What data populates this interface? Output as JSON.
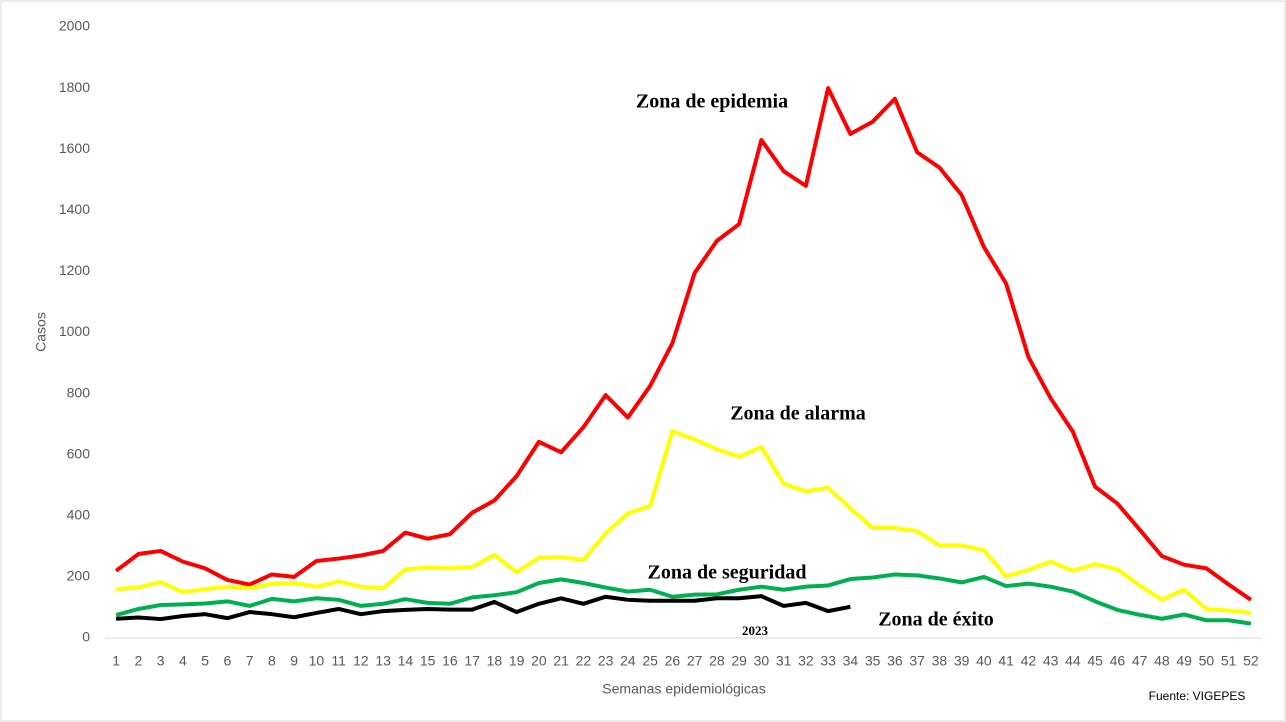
{
  "chart_data": {
    "type": "line",
    "y_label": "Casos",
    "x_label": "Semanas epidemiológicas",
    "source": "Fuente: VIGEPES",
    "annotations": [
      "Zona de epidemia",
      "Zona de alarma",
      "Zona de seguridad",
      "Zona de éxito",
      "2023"
    ],
    "x": [
      1,
      2,
      3,
      4,
      5,
      6,
      7,
      8,
      9,
      10,
      11,
      12,
      13,
      14,
      15,
      16,
      17,
      18,
      19,
      20,
      21,
      22,
      23,
      24,
      25,
      26,
      27,
      28,
      29,
      30,
      31,
      32,
      33,
      34,
      35,
      36,
      37,
      38,
      39,
      40,
      41,
      42,
      43,
      44,
      45,
      46,
      47,
      48,
      49,
      50,
      51,
      52
    ],
    "xlim": [
      0.5,
      52.5
    ],
    "ylim": [
      0,
      2000
    ],
    "yticks": [
      0,
      200,
      400,
      600,
      800,
      1000,
      1200,
      1400,
      1600,
      1800,
      2000
    ],
    "grid": false,
    "series": [
      {
        "color": "#ff0000",
        "values": [
          220,
          275,
          285,
          250,
          228,
          190,
          175,
          208,
          200,
          252,
          260,
          270,
          285,
          345,
          325,
          340,
          410,
          450,
          530,
          642,
          608,
          690,
          795,
          722,
          825,
          965,
          1195,
          1300,
          1355,
          1630,
          1528,
          1480,
          1800,
          1650,
          1690,
          1765,
          1590,
          1540,
          1450,
          1280,
          1160,
          920,
          785,
          675,
          495,
          440,
          355,
          268,
          240,
          228,
          175,
          125
        ]
      },
      {
        "color": "#ffff00",
        "values": [
          160,
          165,
          183,
          150,
          160,
          168,
          163,
          178,
          180,
          168,
          185,
          168,
          162,
          225,
          230,
          228,
          232,
          272,
          215,
          263,
          265,
          255,
          342,
          408,
          432,
          677,
          650,
          618,
          593,
          625,
          505,
          480,
          492,
          425,
          360,
          360,
          350,
          303,
          303,
          287,
          202,
          223,
          250,
          220,
          242,
          225,
          172,
          125,
          158,
          95,
          90,
          82
        ]
      },
      {
        "color": "#00b050",
        "values": [
          75,
          95,
          108,
          110,
          113,
          120,
          105,
          128,
          120,
          130,
          125,
          105,
          112,
          127,
          115,
          112,
          133,
          140,
          150,
          180,
          192,
          180,
          165,
          152,
          158,
          135,
          142,
          143,
          158,
          168,
          158,
          168,
          172,
          193,
          198,
          208,
          205,
          195,
          182,
          200,
          170,
          178,
          168,
          152,
          120,
          92,
          76,
          63,
          77,
          58,
          58,
          47
        ]
      },
      {
        "color": "#000000",
        "values": [
          63,
          67,
          62,
          72,
          78,
          65,
          85,
          78,
          68,
          82,
          95,
          78,
          88,
          92,
          95,
          93,
          93,
          118,
          85,
          112,
          130,
          112,
          135,
          125,
          122,
          122,
          122,
          130,
          130,
          137,
          105,
          115,
          88,
          102,
          null,
          null,
          null,
          null,
          null,
          null,
          null,
          null,
          null,
          null,
          null,
          null,
          null,
          null,
          null,
          null,
          null,
          null
        ]
      }
    ]
  }
}
